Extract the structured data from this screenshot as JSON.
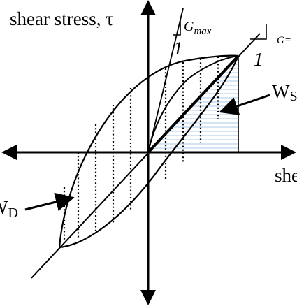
{
  "labels": {
    "y_axis": "shear stress, τ",
    "x_axis": "she",
    "gmax_symbol": "G",
    "gmax_sub": "max",
    "slope_one_left": "1",
    "g_secant": "G=",
    "slope_one_right": "1",
    "ws_main": "W",
    "ws_sub": "S",
    "wd_main": "W",
    "wd_sub": "D"
  }
}
